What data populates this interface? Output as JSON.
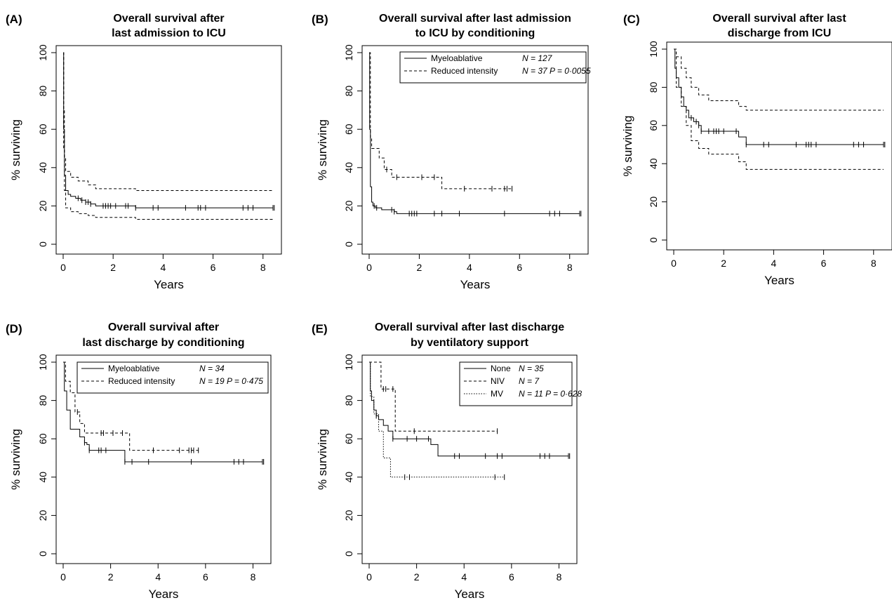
{
  "chart_data": [
    {
      "type": "line",
      "panel": "(A)",
      "title": [
        "Overall survival after",
        "last admission to ICU"
      ],
      "xlabel": "Years",
      "ylabel": "% surviving",
      "xlim": [
        0,
        8.4
      ],
      "ylim": [
        0,
        100
      ],
      "x_ticks": [
        0,
        2,
        4,
        6,
        8
      ],
      "y_ticks": [
        0,
        20,
        40,
        60,
        80,
        100
      ],
      "series": [
        {
          "style": "solid",
          "x": [
            0,
            0.02,
            0.05,
            0.1,
            0.2,
            0.3,
            0.5,
            0.7,
            0.9,
            1.1,
            1.3,
            2.9,
            8.4
          ],
          "y": [
            100,
            60,
            36,
            28,
            26,
            25,
            24,
            23,
            22,
            21,
            20,
            19,
            19
          ],
          "censored_x": [
            0.6,
            0.75,
            0.9,
            1.0,
            1.1,
            1.6,
            1.7,
            1.8,
            1.9,
            2.1,
            2.5,
            2.6,
            2.9,
            3.6,
            3.8,
            4.9,
            5.4,
            5.5,
            5.7,
            7.2,
            7.4,
            7.6,
            8.4,
            8.45
          ]
        },
        {
          "style": "dashed",
          "x": [
            0,
            0.02,
            0.05,
            0.1,
            0.3,
            0.6,
            1.0,
            1.3,
            2.9,
            8.4
          ],
          "y": [
            100,
            70,
            45,
            38,
            35,
            33,
            31,
            29,
            28,
            28
          ]
        },
        {
          "style": "dashed",
          "x": [
            0,
            0.02,
            0.05,
            0.1,
            0.3,
            0.6,
            1.0,
            1.3,
            2.9,
            8.4
          ],
          "y": [
            100,
            50,
            28,
            19,
            17,
            16,
            15,
            14,
            13,
            13
          ]
        }
      ]
    },
    {
      "type": "line",
      "panel": "(B)",
      "title": [
        "Overall survival after last admission",
        "to ICU by conditioning"
      ],
      "xlabel": "Years",
      "ylabel": "% surviving",
      "xlim": [
        0,
        8.4
      ],
      "ylim": [
        0,
        100
      ],
      "x_ticks": [
        0,
        2,
        4,
        6,
        8
      ],
      "y_ticks": [
        0,
        20,
        40,
        60,
        80,
        100
      ],
      "legend": [
        {
          "style": "solid",
          "label": "Myeloablative",
          "stat": "N = 127"
        },
        {
          "style": "dashed",
          "label": "Reduced intensity",
          "stat": "N = 37  P = 0·0055"
        }
      ],
      "series": [
        {
          "style": "solid",
          "x": [
            0,
            0.02,
            0.05,
            0.1,
            0.15,
            0.25,
            0.5,
            1.0,
            1.1,
            8.4
          ],
          "y": [
            100,
            60,
            30,
            22,
            20,
            19,
            18,
            17,
            16,
            16
          ],
          "censored_x": [
            0.2,
            0.3,
            0.9,
            1.0,
            1.6,
            1.7,
            1.8,
            1.9,
            2.6,
            2.9,
            3.6,
            5.4,
            7.2,
            7.4,
            7.6,
            8.4,
            8.45
          ]
        },
        {
          "style": "dashed",
          "x": [
            0,
            0.05,
            0.1,
            0.4,
            0.6,
            0.9,
            2.9,
            5.7
          ],
          "y": [
            100,
            55,
            50,
            45,
            39,
            35,
            29,
            29
          ],
          "censored_x": [
            0.7,
            1.1,
            2.1,
            2.6,
            3.8,
            4.9,
            5.4,
            5.5,
            5.7
          ]
        }
      ]
    },
    {
      "type": "line",
      "panel": "(C)",
      "title": [
        "Overall survival after last",
        "discharge from ICU"
      ],
      "xlabel": "Years",
      "ylabel": "% surviving",
      "xlim": [
        0,
        8.4
      ],
      "ylim": [
        0,
        100
      ],
      "x_ticks": [
        0,
        2,
        4,
        6,
        8
      ],
      "y_ticks": [
        0,
        20,
        40,
        60,
        80,
        100
      ],
      "series": [
        {
          "style": "solid",
          "x": [
            0,
            0.05,
            0.1,
            0.2,
            0.3,
            0.4,
            0.5,
            0.6,
            0.8,
            1.0,
            1.1,
            2.6,
            2.9,
            8.4
          ],
          "y": [
            100,
            90,
            85,
            80,
            75,
            70,
            68,
            64,
            62,
            60,
            57,
            54,
            50,
            50
          ],
          "censored_x": [
            0.7,
            0.9,
            1.0,
            1.1,
            1.4,
            1.6,
            1.7,
            1.8,
            2.0,
            2.5,
            2.9,
            3.6,
            3.8,
            4.9,
            5.3,
            5.4,
            5.5,
            5.7,
            7.2,
            7.4,
            7.6,
            8.4,
            8.45
          ]
        },
        {
          "style": "dashed",
          "x": [
            0,
            0.1,
            0.3,
            0.5,
            0.7,
            1.0,
            1.4,
            2.6,
            2.9,
            8.4
          ],
          "y": [
            100,
            96,
            90,
            85,
            80,
            76,
            73,
            70,
            68,
            68
          ]
        },
        {
          "style": "dashed",
          "x": [
            0,
            0.1,
            0.3,
            0.5,
            0.7,
            1.0,
            1.4,
            2.6,
            2.9,
            8.4
          ],
          "y": [
            100,
            80,
            70,
            60,
            52,
            48,
            45,
            41,
            37,
            37
          ]
        }
      ]
    },
    {
      "type": "line",
      "panel": "(D)",
      "title": [
        "Overall survival after",
        "last discharge by conditioning"
      ],
      "xlabel": "Years",
      "ylabel": "% surviving",
      "xlim": [
        0,
        8.4
      ],
      "ylim": [
        0,
        100
      ],
      "x_ticks": [
        0,
        2,
        4,
        6,
        8
      ],
      "y_ticks": [
        0,
        20,
        40,
        60,
        80,
        100
      ],
      "legend": [
        {
          "style": "solid",
          "label": "Myeloablative",
          "stat": "N = 34"
        },
        {
          "style": "dashed",
          "label": "Reduced intensity",
          "stat": "N = 19  P = 0·475"
        }
      ],
      "series": [
        {
          "style": "solid",
          "x": [
            0,
            0.05,
            0.15,
            0.3,
            0.5,
            0.7,
            0.9,
            1.0,
            1.1,
            2.6,
            8.4
          ],
          "y": [
            100,
            85,
            75,
            65,
            65,
            61,
            58,
            57,
            54,
            48,
            48
          ],
          "censored_x": [
            0.9,
            1.1,
            1.5,
            1.6,
            1.8,
            2.6,
            2.9,
            3.6,
            5.4,
            7.2,
            7.4,
            7.6,
            8.4,
            8.45
          ]
        },
        {
          "style": "dashed",
          "x": [
            0,
            0.1,
            0.3,
            0.5,
            0.7,
            0.9,
            2.8,
            5.7
          ],
          "y": [
            100,
            90,
            84,
            74,
            68,
            63,
            54,
            54
          ],
          "censored_x": [
            0.6,
            1.6,
            1.7,
            2.1,
            2.5,
            3.8,
            4.9,
            5.3,
            5.4,
            5.5,
            5.7
          ]
        }
      ]
    },
    {
      "type": "line",
      "panel": "(E)",
      "title": [
        "Overall survival after last discharge",
        "by ventilatory support"
      ],
      "xlabel": "Years",
      "ylabel": "% surviving",
      "xlim": [
        0,
        8.4
      ],
      "ylim": [
        0,
        100
      ],
      "x_ticks": [
        0,
        2,
        4,
        6,
        8
      ],
      "y_ticks": [
        0,
        20,
        40,
        60,
        80,
        100
      ],
      "legend": [
        {
          "style": "solid",
          "label": "None",
          "stat": "N = 35"
        },
        {
          "style": "dashed",
          "label": "NIV",
          "stat": "N = 7"
        },
        {
          "style": "dotted",
          "label": "MV",
          "stat": "N = 11  P = 0·628"
        }
      ],
      "series": [
        {
          "style": "solid",
          "x": [
            0,
            0.05,
            0.1,
            0.2,
            0.3,
            0.4,
            0.6,
            0.8,
            1.0,
            2.6,
            2.9,
            8.4
          ],
          "y": [
            100,
            85,
            80,
            75,
            72,
            70,
            67,
            64,
            60,
            57,
            51,
            51
          ],
          "censored_x": [
            0.3,
            1.0,
            1.6,
            2.0,
            2.5,
            3.6,
            3.8,
            4.9,
            5.4,
            5.6,
            7.2,
            7.4,
            7.6,
            8.4,
            8.45
          ]
        },
        {
          "style": "dashed",
          "x": [
            0,
            0.5,
            1.1,
            5.4
          ],
          "y": [
            100,
            86,
            64,
            64
          ],
          "censored_x": [
            0.6,
            0.7,
            1.0,
            1.9,
            5.4
          ]
        },
        {
          "style": "dotted",
          "x": [
            0,
            0.05,
            0.2,
            0.4,
            0.6,
            0.9,
            5.7
          ],
          "y": [
            100,
            82,
            73,
            64,
            50,
            40,
            40
          ],
          "censored_x": [
            1.5,
            1.7,
            5.3,
            5.7
          ]
        }
      ]
    }
  ]
}
